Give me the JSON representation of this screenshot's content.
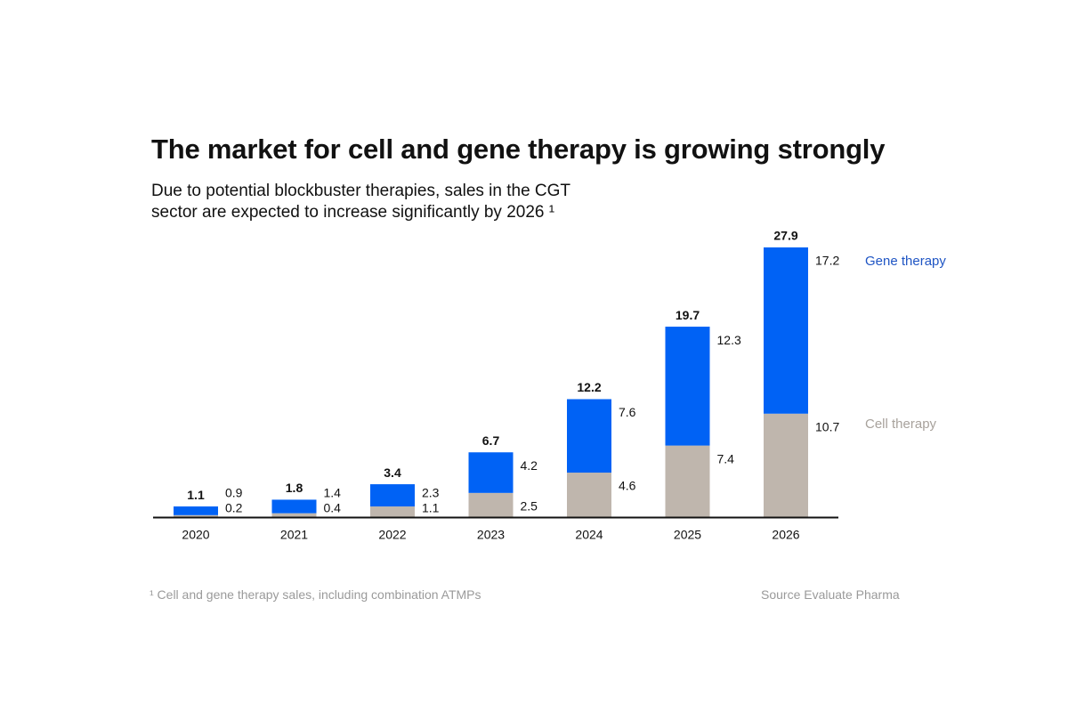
{
  "chart_data": {
    "type": "bar",
    "stacked": true,
    "title": "The market for cell and gene therapy is growing strongly",
    "subtitle_lines": [
      "Due to potential blockbuster therapies, sales in the CGT",
      "sector are expected to increase significantly by 2026 ¹"
    ],
    "categories": [
      "2020",
      "2021",
      "2022",
      "2023",
      "2024",
      "2025",
      "2026"
    ],
    "series": [
      {
        "name": "Cell therapy",
        "values": [
          0.2,
          0.4,
          1.1,
          2.5,
          4.6,
          7.4,
          10.7
        ],
        "labels": [
          "0.2",
          "0.4",
          "1.1",
          "2.5",
          "4.6",
          "7.4",
          "10.7"
        ],
        "color": "#bfb6ad",
        "legend_color": "#a8a29c"
      },
      {
        "name": "Gene therapy",
        "values": [
          0.9,
          1.4,
          2.3,
          4.2,
          7.6,
          12.3,
          17.2
        ],
        "labels": [
          "0.9",
          "1.4",
          "2.3",
          "4.2",
          "7.6",
          "12.3",
          "17.2"
        ],
        "color": "#0062f5",
        "legend_color": "#1f55c4"
      }
    ],
    "totals": [
      "1.1",
      "1.8",
      "3.4",
      "6.7",
      "12.2",
      "19.7",
      "27.9"
    ],
    "ylim": [
      0,
      27.9
    ],
    "grid": false,
    "legend": "right",
    "footnote": "¹ Cell and gene therapy sales, including combination ATMPs",
    "source": "Source Evaluate Pharma"
  }
}
